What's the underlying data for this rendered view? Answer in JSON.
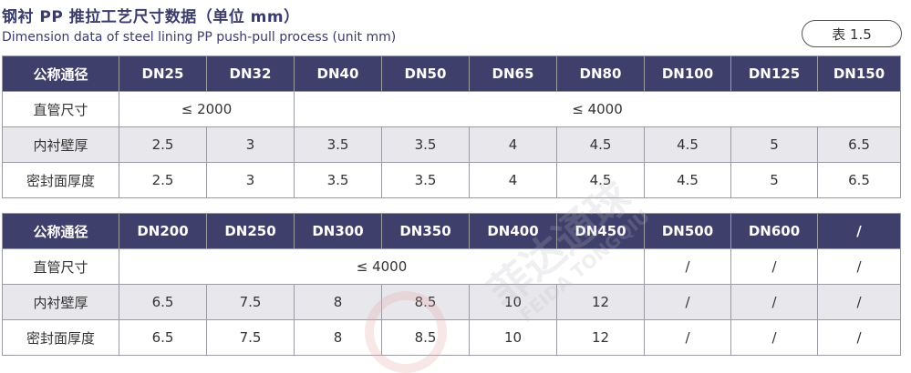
{
  "title": {
    "zh": "钢衬 PP 推拉工艺尺寸数据（单位 mm）",
    "en": "Dimension data of steel lining PP push-pull process (unit mm)"
  },
  "table_label": "表 1.5",
  "watermark": {
    "zh": "菲达通球",
    "en": "FEIDA TONGQIU"
  },
  "table1": {
    "headers": [
      "公称通径",
      "DN25",
      "DN32",
      "DN40",
      "DN50",
      "DN65",
      "DN80",
      "DN100",
      "DN125",
      "DN150"
    ],
    "rows": [
      {
        "label": "直管尺寸",
        "cells": [
          {
            "value": "≤ 2000",
            "span": 2
          },
          {
            "value": "≤ 4000",
            "span": 7
          }
        ]
      },
      {
        "label": "内衬壁厚",
        "cells": [
          {
            "value": "2.5"
          },
          {
            "value": "3"
          },
          {
            "value": "3.5"
          },
          {
            "value": "3.5"
          },
          {
            "value": "4"
          },
          {
            "value": "4.5"
          },
          {
            "value": "4.5"
          },
          {
            "value": "5"
          },
          {
            "value": "6.5"
          }
        ]
      },
      {
        "label": "密封面厚度",
        "cells": [
          {
            "value": "2.5"
          },
          {
            "value": "3"
          },
          {
            "value": "3.5"
          },
          {
            "value": "3.5"
          },
          {
            "value": "4"
          },
          {
            "value": "4.5"
          },
          {
            "value": "4.5"
          },
          {
            "value": "5"
          },
          {
            "value": "6.5"
          }
        ]
      }
    ]
  },
  "table2": {
    "headers": [
      "公称通径",
      "DN200",
      "DN250",
      "DN300",
      "DN350",
      "DN400",
      "DN450",
      "DN500",
      "DN600",
      "/"
    ],
    "rows": [
      {
        "label": "直管尺寸",
        "cells": [
          {
            "value": "≤ 4000",
            "span": 6
          },
          {
            "value": "/"
          },
          {
            "value": "/"
          },
          {
            "value": "/"
          }
        ]
      },
      {
        "label": "内衬壁厚",
        "cells": [
          {
            "value": "6.5"
          },
          {
            "value": "7.5"
          },
          {
            "value": "8"
          },
          {
            "value": "8.5"
          },
          {
            "value": "10"
          },
          {
            "value": "12"
          },
          {
            "value": "/"
          },
          {
            "value": "/"
          },
          {
            "value": "/"
          }
        ]
      },
      {
        "label": "密封面厚度",
        "cells": [
          {
            "value": "6.5"
          },
          {
            "value": "7.5"
          },
          {
            "value": "8"
          },
          {
            "value": "8.5"
          },
          {
            "value": "10"
          },
          {
            "value": "12"
          },
          {
            "value": "/"
          },
          {
            "value": "/"
          },
          {
            "value": "/"
          }
        ]
      }
    ]
  }
}
